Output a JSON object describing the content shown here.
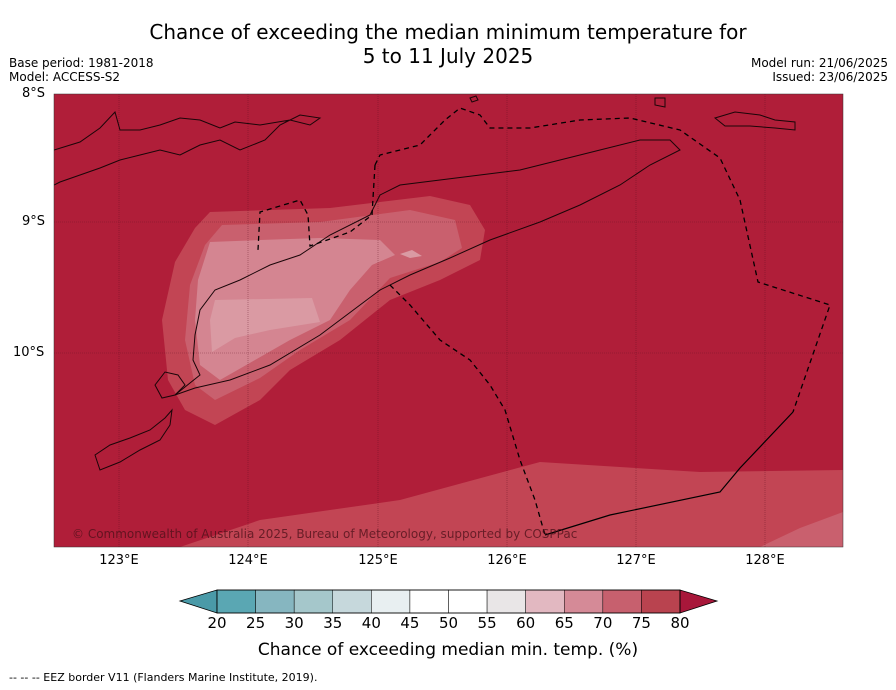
{
  "title_line1": "Chance of exceeding the median minimum temperature for",
  "title_line2": "5 to 11 July 2025",
  "base_period": "Base period: 1981-2018",
  "model": "Model: ACCESS-S2",
  "model_run": "Model run: 21/06/2025",
  "issued": "Issued: 23/06/2025",
  "lat_labels": [
    "8°S",
    "9°S",
    "10°S"
  ],
  "lon_labels": [
    "123°E",
    "124°E",
    "125°E",
    "126°E",
    "127°E",
    "128°E"
  ],
  "copyright": "© Commonwealth of Australia 2025, Bureau of Meteorology, supported by COSPPac",
  "colorbar": {
    "ticks": [
      "20",
      "25",
      "30",
      "35",
      "40",
      "45",
      "50",
      "55",
      "60",
      "65",
      "70",
      "75",
      "80"
    ],
    "colors": [
      "#5aa7b3",
      "#86b6c0",
      "#a5c7cb",
      "#c6d8dc",
      "#e8eff1",
      "#ffffff",
      "#ffffff",
      "#e9e6e7",
      "#e2b8c1",
      "#d58a97",
      "#c7606e",
      "#b9434f"
    ],
    "low_arrow_color": "#4a9aa8",
    "high_arrow_color": "#a8173a",
    "title": "Chance of exceeding median min. temp. (%)"
  },
  "map_colors": {
    "background": "#b01e39",
    "band_75_80": "#c24554",
    "band_70_75": "#c9606e",
    "band_65_70": "#d48591",
    "band_60_65": "#da9aa3"
  },
  "footnote": "--  --  -- EEZ border V11 (Flanders Marine Institute, 2019)."
}
